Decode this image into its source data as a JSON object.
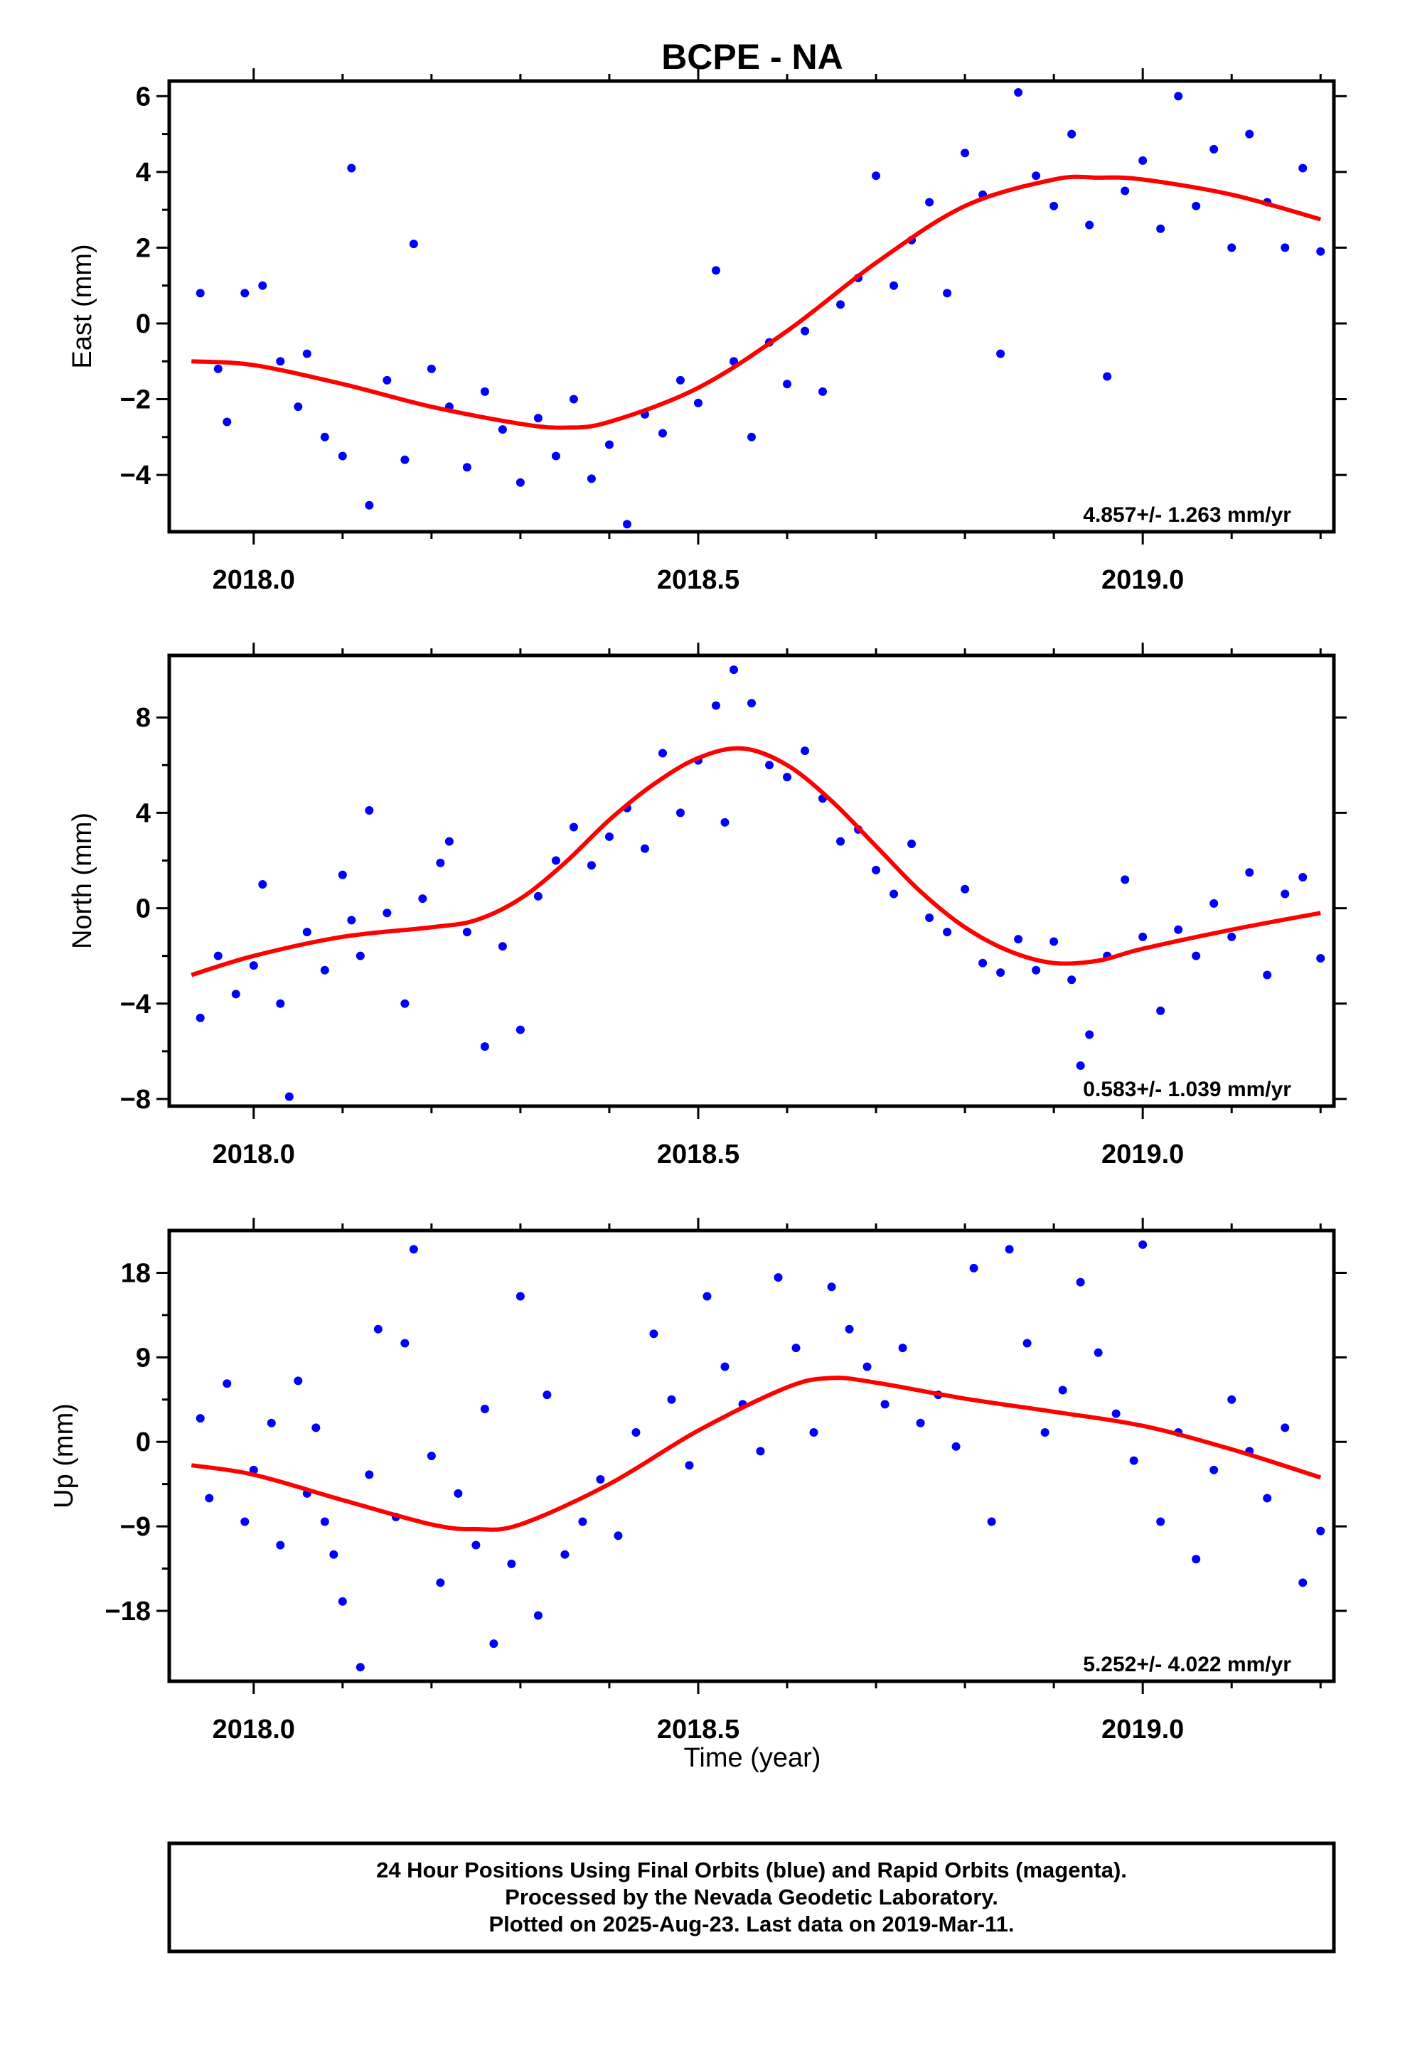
{
  "title": "BCPE - NA",
  "colors": {
    "final_orbits": "#0000ff",
    "rapid_orbits": "#ff00ff",
    "model": "#ff0000"
  },
  "footer": {
    "line1": "24 Hour Positions Using Final Orbits (blue) and Rapid Orbits (magenta).",
    "line2": "Processed by the Nevada Geodetic Laboratory.",
    "line3": "Plotted on 2025-Aug-23. Last data on 2019-Mar-11."
  },
  "chart_data": [
    {
      "type": "scatter",
      "ylabel": "East (mm)",
      "xlabel": "",
      "xlim": [
        2017.905,
        2019.215
      ],
      "ylim": [
        -5.5,
        6.4
      ],
      "xticks": [
        "2018.0",
        "2018.5",
        "2019.0"
      ],
      "yticks": [
        "6",
        "4",
        "2",
        "0",
        "−2",
        "−4"
      ],
      "rate": "4.857+/- 1.263 mm/yr",
      "model": {
        "x": [
          2017.93,
          2018.0,
          2018.1,
          2018.2,
          2018.3,
          2018.35,
          2018.4,
          2018.5,
          2018.6,
          2018.7,
          2018.8,
          2018.9,
          2018.95,
          2019.0,
          2019.1,
          2019.2
        ],
        "y": [
          -1.0,
          -1.1,
          -1.6,
          -2.2,
          -2.65,
          -2.75,
          -2.6,
          -1.7,
          -0.2,
          1.6,
          3.1,
          3.8,
          3.85,
          3.8,
          3.4,
          2.75
        ]
      },
      "series": [
        {
          "values": [
            [
              2017.94,
              0.8
            ],
            [
              2017.96,
              -1.2
            ],
            [
              2017.97,
              -2.6
            ],
            [
              2017.99,
              0.8
            ],
            [
              2018.01,
              1.0
            ],
            [
              2018.03,
              -1.0
            ],
            [
              2018.05,
              -2.2
            ],
            [
              2018.06,
              -0.8
            ],
            [
              2018.08,
              -3.0
            ],
            [
              2018.1,
              -3.5
            ],
            [
              2018.11,
              4.1
            ],
            [
              2018.13,
              -4.8
            ],
            [
              2018.15,
              -1.5
            ],
            [
              2018.17,
              -3.6
            ],
            [
              2018.18,
              2.1
            ],
            [
              2018.2,
              -1.2
            ],
            [
              2018.22,
              -2.2
            ],
            [
              2018.24,
              -3.8
            ],
            [
              2018.26,
              -1.8
            ],
            [
              2018.28,
              -2.8
            ],
            [
              2018.3,
              -4.2
            ],
            [
              2018.32,
              -2.5
            ],
            [
              2018.34,
              -3.5
            ],
            [
              2018.36,
              -2.0
            ],
            [
              2018.38,
              -4.1
            ],
            [
              2018.4,
              -3.2
            ],
            [
              2018.42,
              -5.3
            ],
            [
              2018.44,
              -2.4
            ],
            [
              2018.46,
              -2.9
            ],
            [
              2018.48,
              -1.5
            ],
            [
              2018.5,
              -2.1
            ],
            [
              2018.52,
              1.4
            ],
            [
              2018.54,
              -1.0
            ],
            [
              2018.56,
              -3.0
            ],
            [
              2018.58,
              -0.5
            ],
            [
              2018.6,
              -1.6
            ],
            [
              2018.62,
              -0.2
            ],
            [
              2018.64,
              -1.8
            ],
            [
              2018.66,
              0.5
            ],
            [
              2018.68,
              1.2
            ],
            [
              2018.7,
              3.9
            ],
            [
              2018.72,
              1.0
            ],
            [
              2018.74,
              2.2
            ],
            [
              2018.76,
              3.2
            ],
            [
              2018.78,
              0.8
            ],
            [
              2018.8,
              4.5
            ],
            [
              2018.82,
              3.4
            ],
            [
              2018.84,
              -0.8
            ],
            [
              2018.86,
              6.1
            ],
            [
              2018.88,
              3.9
            ],
            [
              2018.9,
              3.1
            ],
            [
              2018.92,
              5.0
            ],
            [
              2018.94,
              2.6
            ],
            [
              2018.96,
              -1.4
            ],
            [
              2018.98,
              3.5
            ],
            [
              2019.0,
              4.3
            ],
            [
              2019.02,
              2.5
            ],
            [
              2019.04,
              6.0
            ],
            [
              2019.06,
              3.1
            ],
            [
              2019.08,
              4.6
            ],
            [
              2019.1,
              2.0
            ],
            [
              2019.12,
              5.0
            ],
            [
              2019.14,
              3.2
            ],
            [
              2019.16,
              2.0
            ],
            [
              2019.18,
              4.1
            ],
            [
              2019.2,
              1.9
            ]
          ]
        }
      ]
    },
    {
      "type": "scatter",
      "ylabel": "North (mm)",
      "xlabel": "",
      "xlim": [
        2017.905,
        2019.215
      ],
      "ylim": [
        -8.3,
        10.6
      ],
      "xticks": [
        "2018.0",
        "2018.5",
        "2019.0"
      ],
      "yticks": [
        "8",
        "4",
        "0",
        "−4",
        "−8"
      ],
      "rate": "0.583+/- 1.039 mm/yr",
      "model": {
        "x": [
          2017.93,
          2018.0,
          2018.1,
          2018.2,
          2018.25,
          2018.3,
          2018.35,
          2018.4,
          2018.45,
          2018.5,
          2018.55,
          2018.6,
          2018.65,
          2018.7,
          2018.75,
          2018.8,
          2018.85,
          2018.9,
          2018.95,
          2019.0,
          2019.1,
          2019.2
        ],
        "y": [
          -2.8,
          -2.0,
          -1.2,
          -0.8,
          -0.5,
          0.4,
          1.9,
          3.7,
          5.2,
          6.3,
          6.7,
          6.0,
          4.5,
          2.6,
          0.7,
          -0.8,
          -1.8,
          -2.3,
          -2.2,
          -1.7,
          -0.9,
          -0.2
        ]
      },
      "series": [
        {
          "values": [
            [
              2017.94,
              -4.6
            ],
            [
              2017.96,
              -2.0
            ],
            [
              2017.98,
              -3.6
            ],
            [
              2018.0,
              -2.4
            ],
            [
              2018.01,
              1.0
            ],
            [
              2018.03,
              -4.0
            ],
            [
              2018.04,
              -7.9
            ],
            [
              2018.06,
              -1.0
            ],
            [
              2018.08,
              -2.6
            ],
            [
              2018.1,
              1.4
            ],
            [
              2018.11,
              -0.5
            ],
            [
              2018.12,
              -2.0
            ],
            [
              2018.13,
              4.1
            ],
            [
              2018.15,
              -0.2
            ],
            [
              2018.17,
              -4.0
            ],
            [
              2018.19,
              0.4
            ],
            [
              2018.21,
              1.9
            ],
            [
              2018.22,
              2.8
            ],
            [
              2018.24,
              -1.0
            ],
            [
              2018.26,
              -5.8
            ],
            [
              2018.28,
              -1.6
            ],
            [
              2018.3,
              -5.1
            ],
            [
              2018.32,
              0.5
            ],
            [
              2018.34,
              2.0
            ],
            [
              2018.36,
              3.4
            ],
            [
              2018.38,
              1.8
            ],
            [
              2018.4,
              3.0
            ],
            [
              2018.42,
              4.2
            ],
            [
              2018.44,
              2.5
            ],
            [
              2018.46,
              6.5
            ],
            [
              2018.48,
              4.0
            ],
            [
              2018.5,
              6.2
            ],
            [
              2018.52,
              8.5
            ],
            [
              2018.53,
              3.6
            ],
            [
              2018.54,
              10.0
            ],
            [
              2018.56,
              8.6
            ],
            [
              2018.58,
              6.0
            ],
            [
              2018.6,
              5.5
            ],
            [
              2018.62,
              6.6
            ],
            [
              2018.64,
              4.6
            ],
            [
              2018.66,
              2.8
            ],
            [
              2018.68,
              3.3
            ],
            [
              2018.7,
              1.6
            ],
            [
              2018.72,
              0.6
            ],
            [
              2018.74,
              2.7
            ],
            [
              2018.76,
              -0.4
            ],
            [
              2018.78,
              -1.0
            ],
            [
              2018.8,
              0.8
            ],
            [
              2018.82,
              -2.3
            ],
            [
              2018.84,
              -2.7
            ],
            [
              2018.86,
              -1.3
            ],
            [
              2018.88,
              -2.6
            ],
            [
              2018.9,
              -1.4
            ],
            [
              2018.92,
              -3.0
            ],
            [
              2018.93,
              -6.6
            ],
            [
              2018.94,
              -5.3
            ],
            [
              2018.96,
              -2.0
            ],
            [
              2018.98,
              1.2
            ],
            [
              2019.0,
              -1.2
            ],
            [
              2019.02,
              -4.3
            ],
            [
              2019.04,
              -0.9
            ],
            [
              2019.06,
              -2.0
            ],
            [
              2019.08,
              0.2
            ],
            [
              2019.1,
              -1.2
            ],
            [
              2019.12,
              1.5
            ],
            [
              2019.14,
              -2.8
            ],
            [
              2019.16,
              0.6
            ],
            [
              2019.18,
              1.3
            ],
            [
              2019.2,
              -2.1
            ]
          ]
        }
      ]
    },
    {
      "type": "scatter",
      "ylabel": "Up (mm)",
      "xlabel": "Time (year)",
      "xlim": [
        2017.905,
        2019.215
      ],
      "ylim": [
        -25.5,
        22.5
      ],
      "xticks": [
        "2018.0",
        "2018.5",
        "2019.0"
      ],
      "yticks": [
        "18",
        "9",
        "0",
        "−9",
        "−18"
      ],
      "rate": "5.252+/- 4.022 mm/yr",
      "model": {
        "x": [
          2017.93,
          2018.0,
          2018.1,
          2018.2,
          2018.25,
          2018.3,
          2018.4,
          2018.5,
          2018.6,
          2018.65,
          2018.7,
          2018.8,
          2018.9,
          2019.0,
          2019.1,
          2019.2
        ],
        "y": [
          -2.5,
          -3.5,
          -6.2,
          -8.8,
          -9.3,
          -8.8,
          -4.5,
          1.2,
          5.8,
          6.8,
          6.3,
          4.6,
          3.2,
          1.7,
          -0.8,
          -3.8
        ]
      },
      "series": [
        {
          "values": [
            [
              2017.94,
              2.5
            ],
            [
              2017.95,
              -6.0
            ],
            [
              2017.97,
              6.2
            ],
            [
              2017.99,
              -8.5
            ],
            [
              2018.0,
              -3.0
            ],
            [
              2018.02,
              2.0
            ],
            [
              2018.03,
              -11.0
            ],
            [
              2018.05,
              6.5
            ],
            [
              2018.06,
              -5.5
            ],
            [
              2018.07,
              1.5
            ],
            [
              2018.08,
              -8.5
            ],
            [
              2018.09,
              -12.0
            ],
            [
              2018.1,
              -17.0
            ],
            [
              2018.12,
              -24.0
            ],
            [
              2018.13,
              -3.5
            ],
            [
              2018.14,
              12.0
            ],
            [
              2018.16,
              -8.0
            ],
            [
              2018.17,
              10.5
            ],
            [
              2018.18,
              20.5
            ],
            [
              2018.2,
              -1.5
            ],
            [
              2018.21,
              -15.0
            ],
            [
              2018.23,
              -5.5
            ],
            [
              2018.25,
              -11.0
            ],
            [
              2018.26,
              3.5
            ],
            [
              2018.27,
              -21.5
            ],
            [
              2018.29,
              -13.0
            ],
            [
              2018.3,
              15.5
            ],
            [
              2018.32,
              -18.5
            ],
            [
              2018.33,
              5.0
            ],
            [
              2018.35,
              -12.0
            ],
            [
              2018.37,
              -8.5
            ],
            [
              2018.39,
              -4.0
            ],
            [
              2018.41,
              -10.0
            ],
            [
              2018.43,
              1.0
            ],
            [
              2018.45,
              11.5
            ],
            [
              2018.47,
              4.5
            ],
            [
              2018.49,
              -2.5
            ],
            [
              2018.51,
              15.5
            ],
            [
              2018.53,
              8.0
            ],
            [
              2018.55,
              4.0
            ],
            [
              2018.57,
              -1.0
            ],
            [
              2018.59,
              17.5
            ],
            [
              2018.61,
              10.0
            ],
            [
              2018.63,
              1.0
            ],
            [
              2018.65,
              16.5
            ],
            [
              2018.67,
              12.0
            ],
            [
              2018.69,
              8.0
            ],
            [
              2018.71,
              4.0
            ],
            [
              2018.73,
              10.0
            ],
            [
              2018.75,
              2.0
            ],
            [
              2018.77,
              5.0
            ],
            [
              2018.79,
              -0.5
            ],
            [
              2018.81,
              18.5
            ],
            [
              2018.83,
              -8.5
            ],
            [
              2018.85,
              20.5
            ],
            [
              2018.87,
              10.5
            ],
            [
              2018.89,
              1.0
            ],
            [
              2018.91,
              5.5
            ],
            [
              2018.93,
              17.0
            ],
            [
              2018.95,
              9.5
            ],
            [
              2018.97,
              3.0
            ],
            [
              2018.99,
              -2.0
            ],
            [
              2019.0,
              21.0
            ],
            [
              2019.02,
              -8.5
            ],
            [
              2019.04,
              1.0
            ],
            [
              2019.06,
              -12.5
            ],
            [
              2019.08,
              -3.0
            ],
            [
              2019.1,
              4.5
            ],
            [
              2019.12,
              -1.0
            ],
            [
              2019.14,
              -6.0
            ],
            [
              2019.16,
              1.5
            ],
            [
              2019.18,
              -15.0
            ],
            [
              2019.2,
              -9.5
            ]
          ]
        }
      ]
    }
  ]
}
